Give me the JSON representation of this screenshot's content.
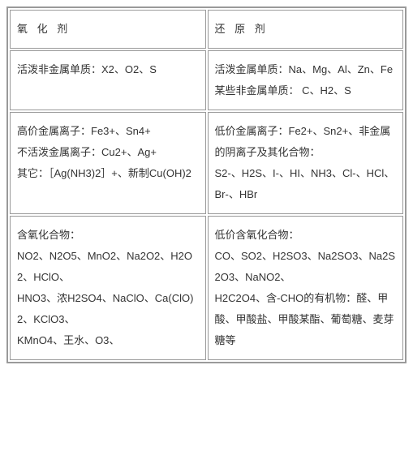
{
  "table": {
    "header": {
      "left": "氧 化 剂",
      "right": "还 原 剂"
    },
    "row1": {
      "left_p1": "活泼非金属单质：X2、O2、S",
      "right_p1": "活泼金属单质：Na、Mg、Al、Zn、Fe",
      "right_p2": "某些非金属单质：  C、H2、S"
    },
    "row2": {
      "left_p1": "高价金属离子：Fe3+、Sn4+",
      "left_p2": "不活泼金属离子：Cu2+、Ag+",
      "left_p3": "其它：［Ag(NH3)2］+、新制Cu(OH)2",
      "right_p1": "低价金属离子：Fe2+、Sn2+、非金属的阴离子及其化合物：",
      "right_p2": "S2-、H2S、I-、HI、NH3、Cl-、HCl、Br-、HBr"
    },
    "row3": {
      "left_p1": "含氧化合物：",
      "left_p2": "NO2、N2O5、MnO2、Na2O2、H2O2、HClO、",
      "left_p3": "HNO3、浓H2SO4、NaClO、Ca(ClO)2、KClO3、",
      "left_p4": "KMnO4、王水、O3、",
      "right_p1": "低价含氧化合物：",
      "right_p2": "CO、SO2、H2SO3、Na2SO3、Na2S2O3、NaNO2、",
      "right_p3": "H2C2O4、含-CHO的有机物：醛、甲酸、甲酸盐、甲酸某酯、葡萄糖、麦芽糖等"
    }
  },
  "style": {
    "border_color": "#9a9a9a",
    "font_size": 13,
    "line_height": 2.0,
    "cell_padding": "10px 8px",
    "header_letter_spacing": 4
  }
}
